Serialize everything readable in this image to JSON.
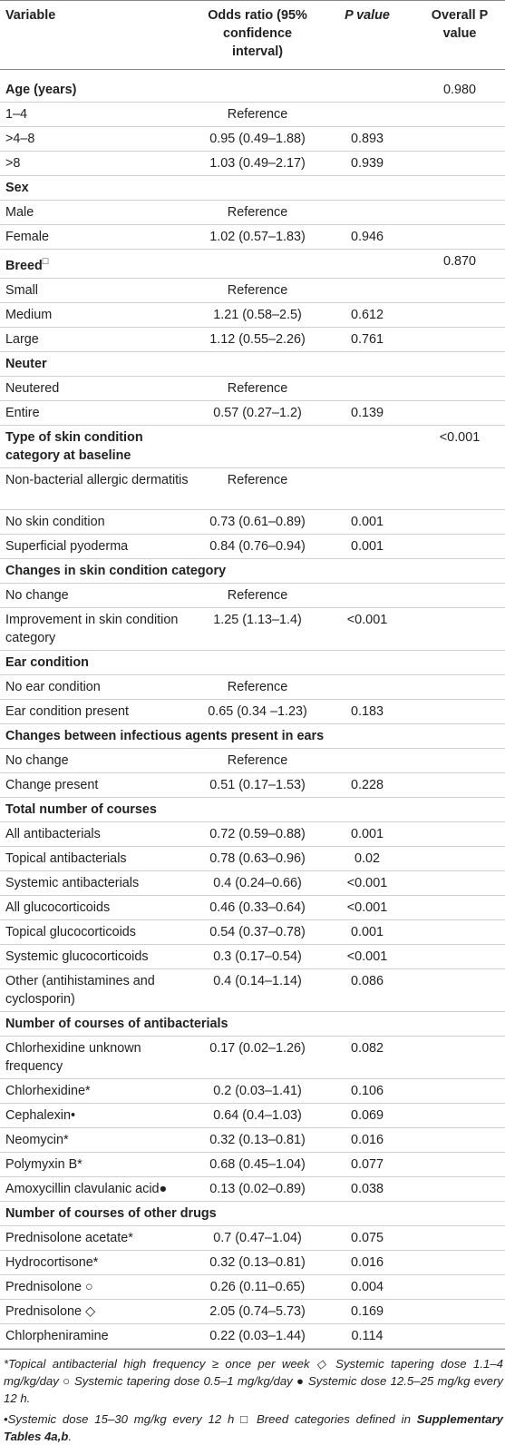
{
  "headers": {
    "variable": "Variable",
    "odds_ratio": "Odds ratio (95% confidence interval)",
    "p_value": "P value",
    "overall_p_value": "Overall P value"
  },
  "rows": [
    {
      "type": "section",
      "variable": "Age (years)",
      "overall": "0.980"
    },
    {
      "type": "data",
      "variable": "1–4",
      "or": "Reference",
      "p": ""
    },
    {
      "type": "data",
      "variable": ">4–8",
      "or": "0.95 (0.49–1.88)",
      "p": "0.893"
    },
    {
      "type": "data",
      "variable": ">8",
      "or": "1.03 (0.49–2.17)",
      "p": "0.939"
    },
    {
      "type": "section",
      "variable": "Sex",
      "overall": ""
    },
    {
      "type": "data",
      "variable": "Male",
      "or": "Reference",
      "p": ""
    },
    {
      "type": "data",
      "variable": "Female",
      "or": "1.02 (0.57–1.83)",
      "p": "0.946"
    },
    {
      "type": "section",
      "variable": "Breed",
      "symbol": "□",
      "overall": "0.870"
    },
    {
      "type": "data",
      "variable": "Small",
      "or": "Reference",
      "p": ""
    },
    {
      "type": "data",
      "variable": "Medium",
      "or": "1.21 (0.58–2.5)",
      "p": "0.612"
    },
    {
      "type": "data",
      "variable": "Large",
      "or": "1.12 (0.55–2.26)",
      "p": "0.761"
    },
    {
      "type": "section",
      "variable": "Neuter",
      "overall": ""
    },
    {
      "type": "data",
      "variable": "Neutered",
      "or": "Reference",
      "p": ""
    },
    {
      "type": "data",
      "variable": "Entire",
      "or": "0.57 (0.27–1.2)",
      "p": "0.139"
    },
    {
      "type": "section",
      "variable": "Type of skin condition category at baseline",
      "overall": "<0.001",
      "tall": true
    },
    {
      "type": "data",
      "variable": "Non-bacterial allergic dermatitis",
      "or": "Reference",
      "p": "",
      "tall": true
    },
    {
      "type": "data",
      "variable": "No skin condition",
      "or": "0.73 (0.61–0.89)",
      "p": "0.001"
    },
    {
      "type": "data",
      "variable": "Superficial pyoderma",
      "or": "0.84 (0.76–0.94)",
      "p": "0.001"
    },
    {
      "type": "section",
      "variable": "Changes in skin condition category",
      "overall": "",
      "span": true
    },
    {
      "type": "data",
      "variable": "No change",
      "or": "Reference",
      "p": ""
    },
    {
      "type": "data",
      "variable": "Improvement in skin condition category",
      "or": "1.25 (1.13–1.4)",
      "p": "<0.001",
      "tall": true
    },
    {
      "type": "section",
      "variable": "Ear condition",
      "overall": ""
    },
    {
      "type": "data",
      "variable": "No ear condition",
      "or": "Reference",
      "p": ""
    },
    {
      "type": "data",
      "variable": "Ear condition present",
      "or": "0.65 (0.34 –1.23)",
      "p": "0.183"
    },
    {
      "type": "section",
      "variable": "Changes between infectious agents present in ears",
      "overall": "",
      "span": true
    },
    {
      "type": "data",
      "variable": "No change",
      "or": "Reference",
      "p": ""
    },
    {
      "type": "data",
      "variable": "Change present",
      "or": "0.51 (0.17–1.53)",
      "p": "0.228"
    },
    {
      "type": "section",
      "variable": "Total number of courses",
      "overall": ""
    },
    {
      "type": "data",
      "variable": "All antibacterials",
      "or": "0.72 (0.59–0.88)",
      "p": "0.001"
    },
    {
      "type": "data",
      "variable": "Topical antibacterials",
      "or": "0.78 (0.63–0.96)",
      "p": "0.02"
    },
    {
      "type": "data",
      "variable": "Systemic antibacterials",
      "or": "0.4 (0.24–0.66)",
      "p": "<0.001"
    },
    {
      "type": "data",
      "variable": "All glucocorticoids",
      "or": "0.46 (0.33–0.64)",
      "p": "<0.001"
    },
    {
      "type": "data",
      "variable": "Topical glucocorticoids",
      "or": "0.54 (0.37–0.78)",
      "p": "0.001"
    },
    {
      "type": "data",
      "variable": "Systemic glucocorticoids",
      "or": "0.3 (0.17–0.54)",
      "p": "<0.001"
    },
    {
      "type": "data",
      "variable": "Other (antihistamines and cyclosporin)",
      "or": "0.4 (0.14–1.14)",
      "p": "0.086",
      "tall": true
    },
    {
      "type": "section",
      "variable": "Number of courses of antibacterials",
      "overall": "",
      "span": true
    },
    {
      "type": "data",
      "variable": "Chlorhexidine unknown frequency",
      "or": "0.17 (0.02–1.26)",
      "p": "0.082",
      "tall": true
    },
    {
      "type": "data",
      "variable": "Chlorhexidine*",
      "or": "0.2 (0.03–1.41)",
      "p": "0.106"
    },
    {
      "type": "data",
      "variable": "Cephalexin•",
      "or": "0.64 (0.4–1.03)",
      "p": "0.069"
    },
    {
      "type": "data",
      "variable": "Neomycin*",
      "or": "0.32 (0.13–0.81)",
      "p": "0.016"
    },
    {
      "type": "data",
      "variable": "Polymyxin B*",
      "or": "0.68 (0.45–1.04)",
      "p": "0.077"
    },
    {
      "type": "data",
      "variable": "Amoxycillin clavulanic acid●",
      "or": "0.13 (0.02–0.89)",
      "p": "0.038"
    },
    {
      "type": "section",
      "variable": "Number of courses of other drugs",
      "overall": "",
      "span": true
    },
    {
      "type": "data",
      "variable": "Prednisolone acetate*",
      "or": "0.7 (0.47–1.04)",
      "p": "0.075"
    },
    {
      "type": "data",
      "variable": "Hydrocortisone*",
      "or": "0.32 (0.13–0.81)",
      "p": "0.016"
    },
    {
      "type": "data",
      "variable": "Prednisolone ○",
      "or": "0.26 (0.11–0.65)",
      "p": "0.004"
    },
    {
      "type": "data",
      "variable": "Prednisolone ◇",
      "or": "2.05 (0.74–5.73)",
      "p": "0.169"
    },
    {
      "type": "data",
      "variable": "Chlorpheniramine",
      "or": "0.22 (0.03–1.44)",
      "p": "0.114"
    }
  ],
  "footnotes": {
    "line1": "*Topical antibacterial high frequency ≥ once per week ◇ Systemic tapering dose 1.1–4 mg/kg/day ○ Systemic tapering dose 0.5–1 mg/kg/day ● Systemic dose 12.5–25 mg/kg every 12 h.",
    "line2_prefix": "•Systemic dose 15–30 mg/kg every 12 h □ Breed categories defined in ",
    "line2_bold": "Supplementary Tables 4a,b",
    "line2_suffix": "."
  }
}
